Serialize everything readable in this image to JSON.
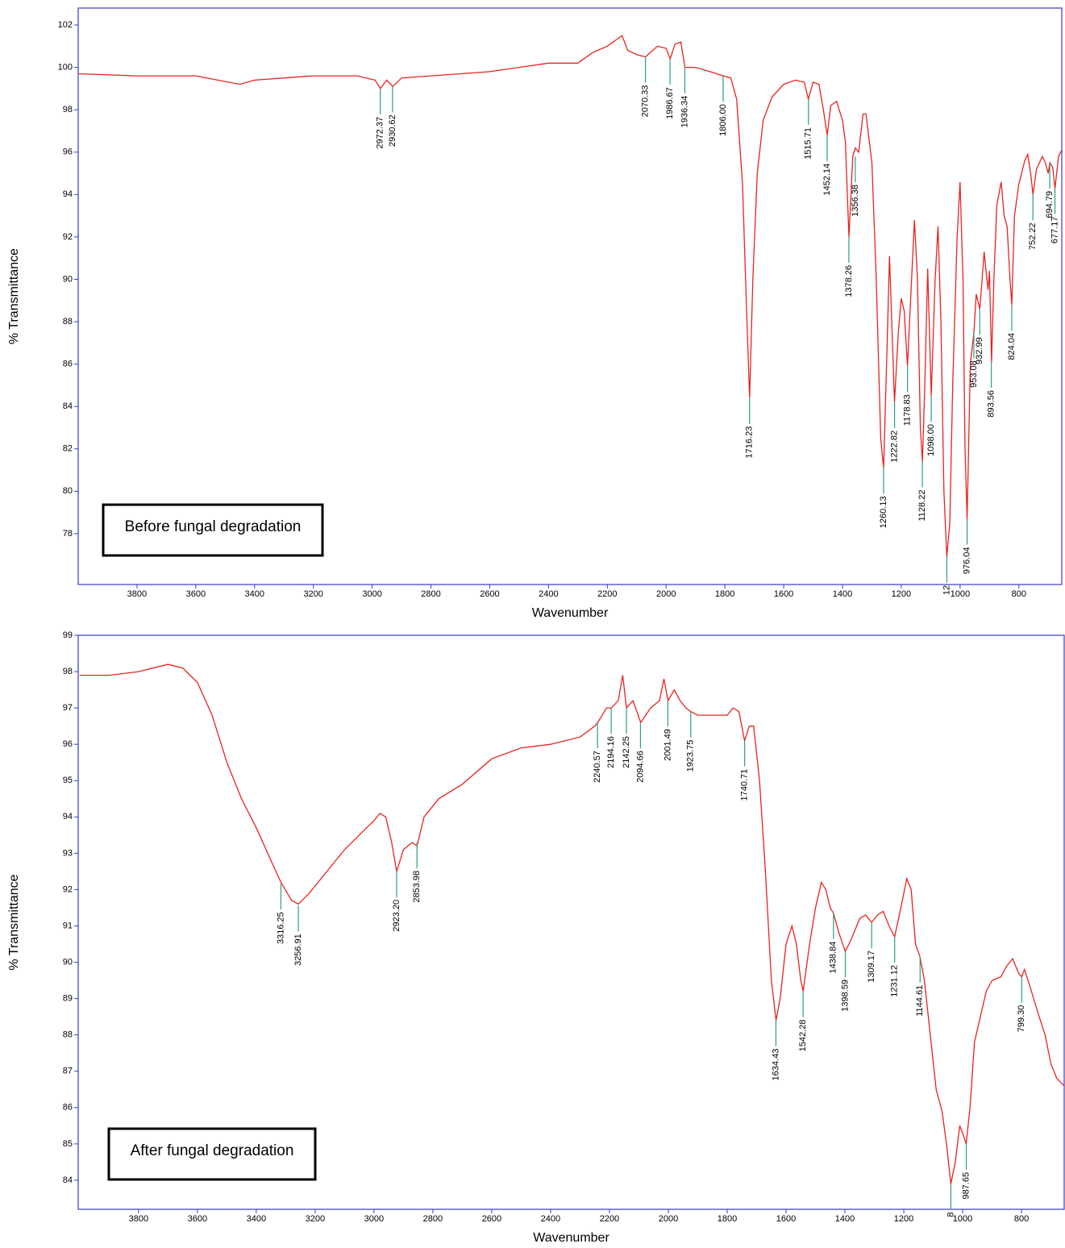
{
  "chart_data": [
    {
      "type": "line",
      "xlabel": "Wavenumber",
      "ylabel": "% Transmittance",
      "annotation": "Before fungal degradation",
      "xlim": [
        4000,
        654
      ],
      "ylim": [
        75.6,
        102.8
      ],
      "xticks": [
        3800,
        3600,
        3400,
        3200,
        3000,
        2800,
        2600,
        2400,
        2200,
        2000,
        1800,
        1600,
        1400,
        1200,
        1000,
        800
      ],
      "yticks": [
        78,
        80,
        82,
        84,
        86,
        88,
        90,
        92,
        94,
        96,
        98,
        100,
        102
      ],
      "x": [
        4000,
        3800,
        3600,
        3450,
        3400,
        3200,
        3050,
        2990,
        2972,
        2950,
        2930,
        2900,
        2800,
        2600,
        2500,
        2400,
        2300,
        2250,
        2200,
        2170,
        2150,
        2130,
        2100,
        2070,
        2030,
        2000,
        1986,
        1970,
        1950,
        1936,
        1900,
        1850,
        1806,
        1780,
        1760,
        1740,
        1725,
        1716,
        1705,
        1690,
        1670,
        1640,
        1600,
        1560,
        1530,
        1516,
        1500,
        1480,
        1465,
        1452,
        1440,
        1420,
        1400,
        1390,
        1378,
        1365,
        1356,
        1345,
        1330,
        1320,
        1300,
        1285,
        1270,
        1260,
        1250,
        1240,
        1230,
        1223,
        1210,
        1200,
        1190,
        1179,
        1165,
        1155,
        1145,
        1135,
        1128,
        1120,
        1110,
        1098,
        1085,
        1075,
        1065,
        1055,
        1045,
        1035,
        1025,
        1010,
        1000,
        990,
        983,
        976,
        965,
        953,
        945,
        933,
        925,
        918,
        905,
        900,
        893,
        885,
        875,
        860,
        850,
        840,
        830,
        824,
        815,
        800,
        780,
        770,
        760,
        752,
        740,
        720,
        710,
        700,
        695,
        685,
        677,
        665,
        654
      ],
      "series": [
        {
          "color": "#e8231e",
          "values": [
            99.7,
            99.6,
            99.6,
            99.2,
            99.4,
            99.6,
            99.6,
            99.4,
            99.0,
            99.4,
            99.1,
            99.5,
            99.6,
            99.8,
            100.0,
            100.2,
            100.2,
            100.7,
            101.0,
            101.3,
            101.5,
            100.8,
            100.6,
            100.5,
            101.0,
            100.9,
            100.4,
            101.1,
            101.2,
            100.0,
            100.0,
            99.8,
            99.6,
            99.5,
            98.5,
            94.5,
            88,
            84.4,
            90,
            95,
            97.5,
            98.6,
            99.2,
            99.4,
            99.3,
            98.5,
            99.3,
            99.2,
            98.0,
            96.8,
            98.2,
            98.4,
            97.5,
            96.5,
            92.0,
            95.8,
            96.2,
            96.0,
            97.8,
            97.8,
            95.5,
            90,
            82.5,
            81.1,
            86,
            91.1,
            87,
            84.2,
            87.5,
            89.1,
            88.5,
            85.9,
            90,
            92.8,
            90,
            83,
            81.4,
            85,
            90.5,
            84.5,
            90,
            92.5,
            88,
            80,
            76.9,
            78.5,
            85,
            92,
            94.6,
            90,
            82,
            78.7,
            86,
            87.5,
            89.3,
            88.6,
            90,
            91.3,
            89.5,
            90.4,
            86.1,
            90,
            93.5,
            94.6,
            93,
            92.5,
            90,
            88.8,
            93,
            94.5,
            95.6,
            95.9,
            95,
            94.0,
            95.2,
            95.8,
            95.5,
            95,
            95.5,
            95.3,
            94.3,
            95.8,
            96.1
          ]
        }
      ],
      "peaks": [
        {
          "label": "2972.37",
          "x": 2972.37,
          "y": 99.0
        },
        {
          "label": "2930.62",
          "x": 2930.62,
          "y": 99.1
        },
        {
          "label": "2070.33",
          "x": 2070.33,
          "y": 100.5
        },
        {
          "label": "1986.67",
          "x": 1986.67,
          "y": 100.4
        },
        {
          "label": "1936.34",
          "x": 1936.34,
          "y": 100.0
        },
        {
          "label": "1806.00",
          "x": 1806,
          "y": 99.6
        },
        {
          "label": "1716.23",
          "x": 1716.23,
          "y": 84.4
        },
        {
          "label": "1515.71",
          "x": 1515.71,
          "y": 98.5
        },
        {
          "label": "1452.14",
          "x": 1452.14,
          "y": 96.8
        },
        {
          "label": "1378.26",
          "x": 1378.26,
          "y": 92.0
        },
        {
          "label": "1356.38",
          "x": 1356.38,
          "y": 95.8
        },
        {
          "label": "1260.13",
          "x": 1260.13,
          "y": 81.1
        },
        {
          "label": "1222.82",
          "x": 1222.82,
          "y": 84.2
        },
        {
          "label": "1178.83",
          "x": 1178.83,
          "y": 85.9
        },
        {
          "label": "1128.22",
          "x": 1128.22,
          "y": 81.4
        },
        {
          "label": "1098.00",
          "x": 1098,
          "y": 84.5
        },
        {
          "label": "12",
          "x": 1045,
          "y": 76.9
        },
        {
          "label": "976.04",
          "x": 976.04,
          "y": 78.7
        },
        {
          "label": "953.08",
          "x": 953.08,
          "y": 87.5
        },
        {
          "label": "932.99",
          "x": 932.99,
          "y": 88.6
        },
        {
          "label": "893.56",
          "x": 893.56,
          "y": 86.1
        },
        {
          "label": "824.04",
          "x": 824.04,
          "y": 88.8
        },
        {
          "label": "752.22",
          "x": 752.22,
          "y": 94.0
        },
        {
          "label": "694.79",
          "x": 694.79,
          "y": 95.5
        },
        {
          "label": "677.17",
          "x": 677.17,
          "y": 94.3
        }
      ]
    },
    {
      "type": "line",
      "xlabel": "Wavenumber",
      "ylabel": "% Transmittance",
      "annotation": "After fungal degradation",
      "xlim": [
        4005,
        655
      ],
      "ylim": [
        83.2,
        99
      ],
      "xticks": [
        3800,
        3600,
        3400,
        3200,
        3000,
        2800,
        2600,
        2400,
        2200,
        2000,
        1800,
        1600,
        1400,
        1200,
        1000,
        800
      ],
      "yticks": [
        84,
        85,
        86,
        87,
        88,
        89,
        90,
        91,
        92,
        93,
        94,
        95,
        96,
        97,
        98,
        99
      ],
      "x": [
        4000,
        3900,
        3800,
        3700,
        3650,
        3600,
        3550,
        3500,
        3450,
        3400,
        3350,
        3316,
        3280,
        3257,
        3220,
        3150,
        3100,
        3050,
        3000,
        2980,
        2960,
        2940,
        2923,
        2900,
        2870,
        2854,
        2830,
        2780,
        2700,
        2600,
        2500,
        2400,
        2300,
        2250,
        2240,
        2210,
        2194,
        2170,
        2155,
        2142,
        2120,
        2094,
        2060,
        2030,
        2015,
        2001,
        1980,
        1960,
        1940,
        1924,
        1900,
        1850,
        1800,
        1780,
        1760,
        1741,
        1725,
        1710,
        1690,
        1670,
        1650,
        1634,
        1620,
        1600,
        1580,
        1565,
        1550,
        1542,
        1520,
        1500,
        1480,
        1465,
        1450,
        1439,
        1420,
        1399,
        1380,
        1350,
        1330,
        1309,
        1290,
        1270,
        1250,
        1231,
        1210,
        1190,
        1175,
        1160,
        1145,
        1130,
        1110,
        1090,
        1070,
        1055,
        1040,
        1025,
        1010,
        1000,
        988,
        975,
        960,
        940,
        920,
        900,
        870,
        850,
        830,
        810,
        799,
        790,
        770,
        740,
        720,
        700,
        680,
        655
      ],
      "series": [
        {
          "color": "#e8231e",
          "values": [
            97.9,
            97.9,
            98.0,
            98.2,
            98.1,
            97.7,
            96.8,
            95.5,
            94.5,
            93.7,
            92.8,
            92.2,
            91.7,
            91.6,
            91.9,
            92.6,
            93.1,
            93.5,
            93.9,
            94.1,
            94.0,
            93.3,
            92.5,
            93.1,
            93.3,
            93.2,
            94.0,
            94.5,
            94.9,
            95.6,
            95.9,
            96.0,
            96.2,
            96.5,
            96.6,
            97.0,
            97.0,
            97.2,
            97.9,
            97.0,
            97.2,
            96.6,
            97.0,
            97.2,
            97.8,
            97.2,
            97.5,
            97.2,
            97.0,
            96.9,
            96.8,
            96.8,
            96.8,
            97.0,
            96.9,
            96.1,
            96.5,
            96.5,
            95.0,
            92.5,
            89.5,
            88.4,
            89.0,
            90.5,
            91.0,
            90.5,
            89.5,
            89.2,
            90.5,
            91.5,
            92.2,
            92.0,
            91.5,
            91.35,
            90.8,
            90.3,
            90.6,
            91.2,
            91.3,
            91.1,
            91.3,
            91.4,
            91.0,
            90.7,
            91.5,
            92.3,
            92.0,
            90.5,
            90.15,
            89.5,
            88.0,
            86.5,
            85.9,
            85.0,
            83.9,
            84.5,
            85.5,
            85.3,
            85.0,
            86.0,
            87.8,
            88.5,
            89.2,
            89.5,
            89.6,
            89.9,
            90.1,
            89.7,
            89.6,
            89.8,
            89.3,
            88.5,
            88.0,
            87.2,
            86.8,
            86.6
          ]
        }
      ],
      "peaks": [
        {
          "label": "3316.25",
          "x": 3316.25,
          "y": 92.16
        },
        {
          "label": "3256.91",
          "x": 3256.91,
          "y": 91.56
        },
        {
          "label": "2923.20",
          "x": 2923.2,
          "y": 92.5
        },
        {
          "label": "2853.98",
          "x": 2853.98,
          "y": 93.3
        },
        {
          "label": "2240.57",
          "x": 2240.57,
          "y": 96.6
        },
        {
          "label": "2194.16",
          "x": 2194.16,
          "y": 97.0
        },
        {
          "label": "2142.25",
          "x": 2142.25,
          "y": 97.0
        },
        {
          "label": "2094.66",
          "x": 2094.66,
          "y": 96.6
        },
        {
          "label": "2001.49",
          "x": 2001.49,
          "y": 97.2
        },
        {
          "label": "1923.75",
          "x": 1923.75,
          "y": 96.9
        },
        {
          "label": "1740.71",
          "x": 1740.71,
          "y": 96.1
        },
        {
          "label": "1634.43",
          "x": 1634.43,
          "y": 88.4
        },
        {
          "label": "1542.28",
          "x": 1542.28,
          "y": 89.2
        },
        {
          "label": "1438.84",
          "x": 1438.84,
          "y": 91.35
        },
        {
          "label": "1398.59",
          "x": 1398.59,
          "y": 90.3
        },
        {
          "label": "1309.17",
          "x": 1309.17,
          "y": 91.1
        },
        {
          "label": "1231.12",
          "x": 1231.12,
          "y": 90.7
        },
        {
          "label": "1144.61",
          "x": 1144.61,
          "y": 90.15
        },
        {
          "label": "8",
          "x": 1040,
          "y": 83.9
        },
        {
          "label": "987.65",
          "x": 987.65,
          "y": 85.0
        },
        {
          "label": "799.30",
          "x": 799.3,
          "y": 89.6
        }
      ]
    }
  ]
}
